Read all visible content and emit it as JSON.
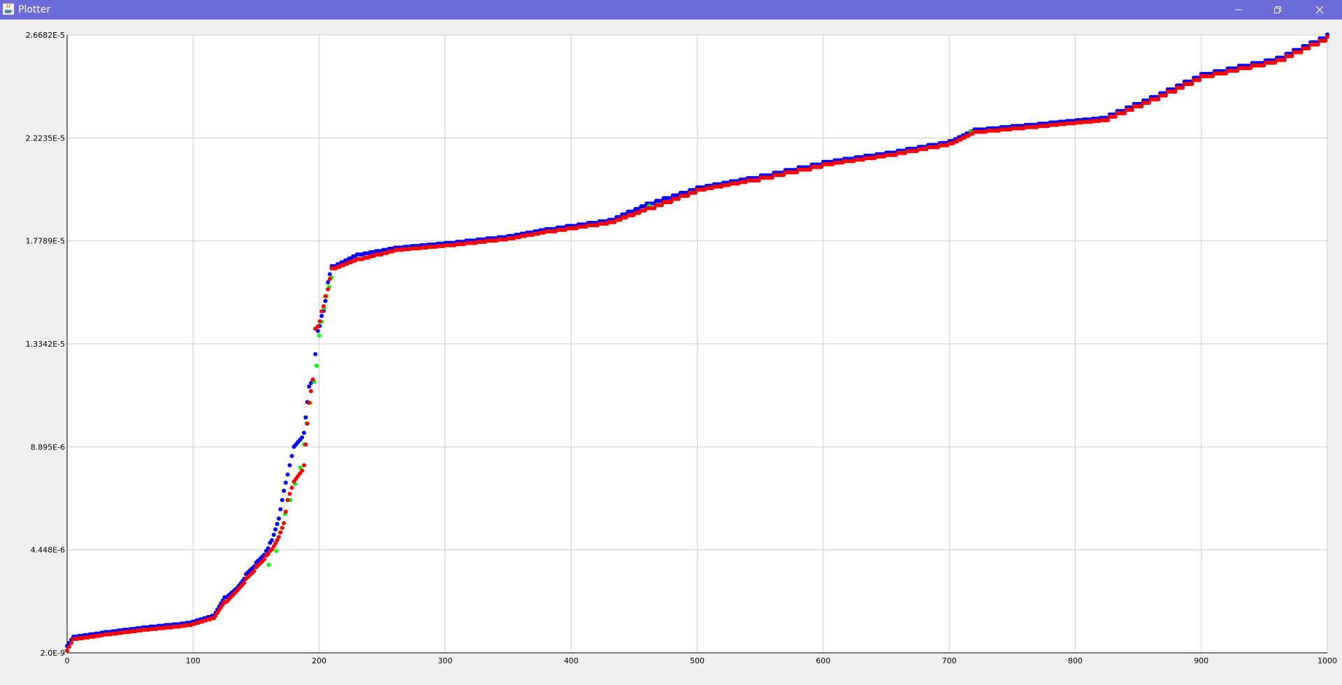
{
  "window": {
    "title": "Plotter",
    "title_bar_color": "#6b6bd9",
    "icons": [
      "java-app-icon",
      "minimize-icon",
      "restore-icon",
      "close-icon"
    ]
  },
  "chart_data": {
    "type": "scatter",
    "title": "",
    "xlabel": "",
    "ylabel": "",
    "xlim": [
      0,
      1000
    ],
    "ylim": [
      2e-09,
      2.6682e-05
    ],
    "grid": true,
    "x_ticks": [
      "0",
      "100",
      "200",
      "300",
      "400",
      "500",
      "600",
      "700",
      "800",
      "900",
      "1000"
    ],
    "y_ticks": [
      "2.0E-9",
      "4.448E-6",
      "8.895E-6",
      "1.3342E-5",
      "1.7789E-5",
      "2.2235E-5",
      "2.6682E-5"
    ],
    "series": [
      {
        "color": "#0000ff",
        "points": [
          [
            0,
            3e-07
          ],
          [
            5,
            7e-07
          ],
          [
            30,
            9e-07
          ],
          [
            60,
            1.1e-06
          ],
          [
            95,
            1.3e-06
          ],
          [
            115,
            1.6e-06
          ],
          [
            125,
            2.4e-06
          ],
          [
            135,
            2.8e-06
          ],
          [
            142,
            3.4e-06
          ],
          [
            150,
            3.9e-06
          ],
          [
            158,
            4.4e-06
          ],
          [
            164,
            5.1e-06
          ],
          [
            168,
            5.8e-06
          ],
          [
            172,
            7e-06
          ],
          [
            175,
            7.7e-06
          ],
          [
            180,
            8.9e-06
          ],
          [
            188,
            9.5e-06
          ],
          [
            192,
            1.15e-05
          ],
          [
            195,
            1.18e-05
          ],
          [
            197,
            1.29e-05
          ],
          [
            199,
            1.39e-05
          ],
          [
            205,
            1.52e-05
          ],
          [
            207,
            1.6e-05
          ],
          [
            210,
            1.67e-05
          ],
          [
            230,
            1.72e-05
          ],
          [
            260,
            1.75e-05
          ],
          [
            300,
            1.77e-05
          ],
          [
            350,
            1.8e-05
          ],
          [
            380,
            1.83e-05
          ],
          [
            430,
            1.87e-05
          ],
          [
            460,
            1.94e-05
          ],
          [
            500,
            2.01e-05
          ],
          [
            540,
            2.05e-05
          ],
          [
            600,
            2.12e-05
          ],
          [
            650,
            2.16e-05
          ],
          [
            700,
            2.21e-05
          ],
          [
            720,
            2.26e-05
          ],
          [
            780,
            2.29e-05
          ],
          [
            820,
            2.31e-05
          ],
          [
            860,
            2.4e-05
          ],
          [
            900,
            2.5e-05
          ],
          [
            960,
            2.57e-05
          ],
          [
            1000,
            2.67e-05
          ]
        ]
      },
      {
        "color": "#ff0000",
        "points": [
          [
            0,
            1e-07
          ],
          [
            5,
            6e-07
          ],
          [
            30,
            8e-07
          ],
          [
            60,
            1e-06
          ],
          [
            95,
            1.2e-06
          ],
          [
            115,
            1.5e-06
          ],
          [
            125,
            2.2e-06
          ],
          [
            135,
            2.7e-06
          ],
          [
            142,
            3.2e-06
          ],
          [
            150,
            3.7e-06
          ],
          [
            158,
            4.2e-06
          ],
          [
            164,
            4.6e-06
          ],
          [
            168,
            5e-06
          ],
          [
            172,
            5.6e-06
          ],
          [
            175,
            6.6e-06
          ],
          [
            180,
            7.4e-06
          ],
          [
            188,
            8.1e-06
          ],
          [
            192,
            1.08e-05
          ],
          [
            195,
            1.18e-05
          ],
          [
            197,
            1.4e-05
          ],
          [
            199,
            1.41e-05
          ],
          [
            205,
            1.54e-05
          ],
          [
            207,
            1.57e-05
          ],
          [
            210,
            1.66e-05
          ],
          [
            230,
            1.7e-05
          ],
          [
            260,
            1.74e-05
          ],
          [
            300,
            1.76e-05
          ],
          [
            350,
            1.79e-05
          ],
          [
            380,
            1.82e-05
          ],
          [
            430,
            1.86e-05
          ],
          [
            460,
            1.92e-05
          ],
          [
            500,
            2e-05
          ],
          [
            540,
            2.04e-05
          ],
          [
            600,
            2.11e-05
          ],
          [
            650,
            2.15e-05
          ],
          [
            700,
            2.2e-05
          ],
          [
            720,
            2.25e-05
          ],
          [
            780,
            2.28e-05
          ],
          [
            820,
            2.3e-05
          ],
          [
            860,
            2.39e-05
          ],
          [
            900,
            2.49e-05
          ],
          [
            960,
            2.56e-05
          ],
          [
            1000,
            2.66e-05
          ]
        ]
      },
      {
        "color": "#00ff00",
        "points": [
          [
            160,
            3.8e-06
          ],
          [
            166,
            4.4e-06
          ],
          [
            169,
            5.2e-06
          ],
          [
            173,
            6e-06
          ],
          [
            177,
            6.6e-06
          ],
          [
            181,
            7.3e-06
          ],
          [
            185,
            8e-06
          ],
          [
            188,
            9e-06
          ],
          [
            190,
            9.9e-06
          ],
          [
            193,
            1.08e-05
          ],
          [
            196,
            1.17e-05
          ],
          [
            198,
            1.24e-05
          ],
          [
            200,
            1.37e-05
          ],
          [
            202,
            1.43e-05
          ],
          [
            204,
            1.49e-05
          ],
          [
            206,
            1.54e-05
          ],
          [
            208,
            1.58e-05
          ],
          [
            210,
            1.62e-05
          ],
          [
            462,
            1.93e-05
          ],
          [
            717,
            2.25e-05
          ]
        ]
      }
    ]
  }
}
